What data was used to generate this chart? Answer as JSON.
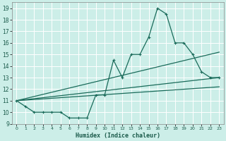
{
  "xlabel": "Humidex (Indice chaleur)",
  "bg_color": "#cceee8",
  "grid_color": "#ffffff",
  "line_color": "#1a6b5a",
  "xlim": [
    -0.5,
    23.5
  ],
  "ylim": [
    9,
    19.5
  ],
  "xticks": [
    0,
    1,
    2,
    3,
    4,
    5,
    6,
    7,
    8,
    9,
    10,
    11,
    12,
    13,
    14,
    15,
    16,
    17,
    18,
    19,
    20,
    21,
    22,
    23
  ],
  "yticks": [
    9,
    10,
    11,
    12,
    13,
    14,
    15,
    16,
    17,
    18,
    19
  ],
  "line1_x": [
    0,
    1,
    2,
    3,
    4,
    5,
    6,
    7,
    8,
    9,
    10,
    11,
    12,
    13,
    14,
    15,
    16,
    17,
    18,
    19,
    20,
    21,
    22,
    23
  ],
  "line1_y": [
    11.0,
    10.5,
    10.0,
    10.0,
    10.0,
    10.0,
    9.5,
    9.5,
    9.5,
    11.5,
    11.5,
    14.5,
    13.0,
    15.0,
    15.0,
    16.5,
    19.0,
    18.5,
    16.0,
    16.0,
    15.0,
    13.5,
    13.0,
    13.0
  ],
  "line2_x": [
    0,
    23
  ],
  "line2_y": [
    11.0,
    13.0
  ],
  "line3_x": [
    0,
    23
  ],
  "line3_y": [
    11.0,
    15.2
  ],
  "line4_x": [
    0,
    23
  ],
  "line4_y": [
    11.0,
    12.2
  ],
  "figsize": [
    3.2,
    2.0
  ],
  "dpi": 100
}
